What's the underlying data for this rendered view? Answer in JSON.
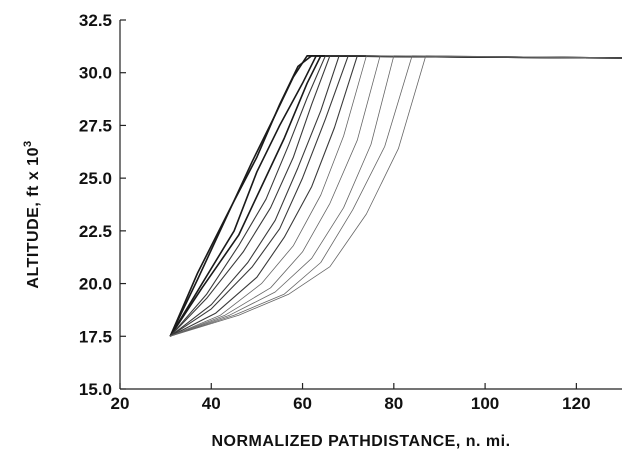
{
  "chart_data": {
    "type": "line",
    "xlabel": "NORMALIZED PATHDISTANCE, n. mi.",
    "ylabel": "ALTITUDE, ft x 10",
    "ylabel_exponent": "3",
    "xlim": [
      20,
      130
    ],
    "ylim": [
      15.0,
      32.5
    ],
    "x_ticks": [
      "20",
      "40",
      "60",
      "80",
      "100",
      "120"
    ],
    "y_ticks": [
      "15.0",
      "17.5",
      "20.0",
      "22.5",
      "25.0",
      "27.5",
      "30.0",
      "32.5"
    ],
    "grid": false,
    "legend": "none",
    "series": [
      {
        "x": [
          31,
          37,
          44,
          50,
          55,
          59,
          62,
          130
        ],
        "y": [
          17.5,
          20.5,
          23.5,
          26.0,
          28.5,
          30.3,
          30.8,
          30.7
        ]
      },
      {
        "x": [
          31,
          37,
          43,
          49,
          54,
          58,
          61,
          130
        ],
        "y": [
          17.5,
          20.2,
          23.0,
          25.8,
          28.0,
          29.8,
          30.8,
          30.7
        ]
      },
      {
        "x": [
          31,
          38,
          45,
          50,
          55,
          60,
          63,
          130
        ],
        "y": [
          17.5,
          20.0,
          22.5,
          25.3,
          27.5,
          29.5,
          30.8,
          30.7
        ]
      },
      {
        "x": [
          31,
          38,
          46,
          51,
          56,
          61,
          64,
          130
        ],
        "y": [
          17.5,
          19.8,
          22.3,
          24.6,
          26.9,
          29.5,
          30.8,
          30.7
        ]
      },
      {
        "x": [
          31,
          39,
          46,
          52,
          57,
          61,
          65,
          130
        ],
        "y": [
          17.5,
          19.5,
          21.8,
          24.0,
          26.6,
          28.8,
          30.8,
          30.7
        ]
      },
      {
        "x": [
          31,
          39,
          47,
          53,
          58,
          62,
          66,
          130
        ],
        "y": [
          17.5,
          19.3,
          21.5,
          23.6,
          26.0,
          28.5,
          30.8,
          30.7
        ]
      },
      {
        "x": [
          31,
          40,
          48,
          54,
          59,
          64,
          68,
          130
        ],
        "y": [
          17.5,
          19.0,
          21.0,
          23.0,
          25.5,
          28.2,
          30.8,
          30.7
        ]
      },
      {
        "x": [
          31,
          40,
          49,
          55,
          60,
          65,
          70,
          130
        ],
        "y": [
          17.5,
          18.8,
          20.8,
          22.6,
          25.0,
          27.8,
          30.8,
          30.7
        ]
      },
      {
        "x": [
          31,
          41,
          50,
          56,
          62,
          67,
          72,
          130
        ],
        "y": [
          17.5,
          18.6,
          20.3,
          22.2,
          24.6,
          27.4,
          30.8,
          30.7
        ]
      },
      {
        "x": [
          31,
          42,
          51,
          58,
          64,
          69,
          74,
          130
        ],
        "y": [
          17.5,
          18.5,
          20.0,
          21.8,
          24.2,
          27.0,
          30.8,
          30.7
        ]
      },
      {
        "x": [
          31,
          43,
          53,
          60,
          66,
          72,
          77,
          130
        ],
        "y": [
          17.5,
          18.5,
          19.8,
          21.5,
          23.8,
          26.8,
          30.8,
          30.7
        ]
      },
      {
        "x": [
          31,
          44,
          54,
          62,
          69,
          75,
          80,
          130
        ],
        "y": [
          17.5,
          18.5,
          19.6,
          21.2,
          23.6,
          26.6,
          30.8,
          30.7
        ]
      },
      {
        "x": [
          31,
          45,
          56,
          64,
          71,
          78,
          84,
          130
        ],
        "y": [
          17.5,
          18.5,
          19.5,
          21.0,
          23.5,
          26.5,
          30.8,
          30.7
        ]
      },
      {
        "x": [
          31,
          46,
          57,
          66,
          74,
          81,
          87,
          130
        ],
        "y": [
          17.5,
          18.5,
          19.5,
          20.8,
          23.3,
          26.4,
          30.8,
          30.7
        ]
      }
    ]
  }
}
